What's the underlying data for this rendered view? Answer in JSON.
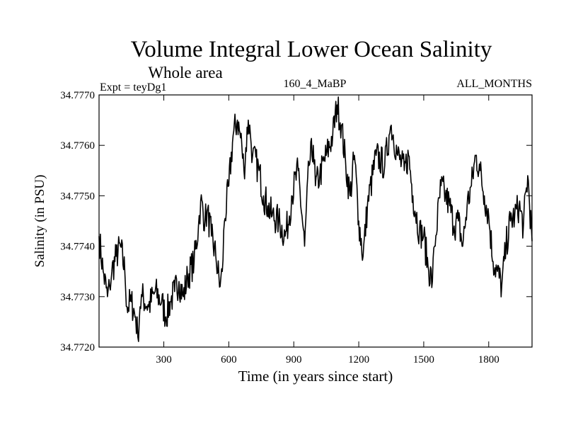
{
  "chart_data": {
    "type": "line",
    "title": "Volume Integral Lower Ocean Salinity",
    "subtitle": "Whole area",
    "header_left": "Expt = teyDg1",
    "header_center": "160_4_MaBP",
    "header_right": "ALL_MONTHS",
    "xlabel": "Time (in years since start)",
    "ylabel": "Salinity (in PSU)",
    "xlim": [
      1,
      2000
    ],
    "ylim": [
      34.772,
      34.777
    ],
    "xticks": [
      300,
      600,
      900,
      1200,
      1500,
      1800
    ],
    "yticks": [
      34.772,
      34.773,
      34.774,
      34.775,
      34.776,
      34.777
    ],
    "ytick_labels": [
      "34.7720",
      "34.7730",
      "34.7740",
      "34.7750",
      "34.7760",
      "34.7770"
    ],
    "grid": false,
    "series": [
      {
        "name": "Salinity",
        "color": "#000000",
        "x": [
          1,
          20,
          40,
          50,
          60,
          80,
          100,
          120,
          130,
          150,
          170,
          180,
          190,
          200,
          230,
          260,
          290,
          310,
          330,
          350,
          370,
          390,
          410,
          440,
          460,
          470,
          490,
          500,
          520,
          540,
          560,
          570,
          580,
          600,
          620,
          640,
          660,
          670,
          690,
          700,
          710,
          740,
          760,
          780,
          800,
          830,
          860,
          880,
          890,
          920,
          950,
          970,
          990,
          1000,
          1020,
          1050,
          1080,
          1100,
          1120,
          1140,
          1160,
          1180,
          1200,
          1220,
          1240,
          1280,
          1320,
          1340,
          1350,
          1380,
          1410,
          1430,
          1450,
          1480,
          1500,
          1520,
          1540,
          1550,
          1580,
          1600,
          1620,
          1640,
          1660,
          1680,
          1700,
          1720,
          1740,
          1760,
          1780,
          1800,
          1820,
          1840,
          1860,
          1880,
          1900,
          1920,
          1940,
          1960,
          1980,
          2000
        ],
        "values": [
          34.7742,
          34.7735,
          34.773,
          34.7732,
          34.7735,
          34.7738,
          34.774,
          34.7735,
          34.7728,
          34.7729,
          34.7726,
          34.7722,
          34.7728,
          34.773,
          34.7728,
          34.7731,
          34.7729,
          34.7726,
          34.7729,
          34.7731,
          34.7733,
          34.773,
          34.7734,
          34.7737,
          34.7744,
          34.7749,
          34.7745,
          34.7747,
          34.7742,
          34.7738,
          34.7732,
          34.7735,
          34.7745,
          34.7752,
          34.7762,
          34.7765,
          34.776,
          34.7755,
          34.7765,
          34.7762,
          34.7758,
          34.7755,
          34.775,
          34.7748,
          34.7746,
          34.7745,
          34.7742,
          34.7746,
          34.775,
          34.7755,
          34.774,
          34.7756,
          34.776,
          34.7752,
          34.7754,
          34.7758,
          34.7762,
          34.7768,
          34.7764,
          34.7756,
          34.775,
          34.7758,
          34.7745,
          34.7738,
          34.7748,
          34.7758,
          34.7756,
          34.7762,
          34.7764,
          34.7758,
          34.7755,
          34.7758,
          34.775,
          34.7743,
          34.7742,
          34.7736,
          34.7733,
          34.774,
          34.7752,
          34.775,
          34.7748,
          34.7744,
          34.7745,
          34.774,
          34.7748,
          34.7752,
          34.7758,
          34.7755,
          34.775,
          34.7746,
          34.7737,
          34.7735,
          34.7732,
          34.774,
          34.7745,
          34.7746,
          34.7748,
          34.7744,
          34.7754,
          34.7741
        ]
      }
    ]
  }
}
